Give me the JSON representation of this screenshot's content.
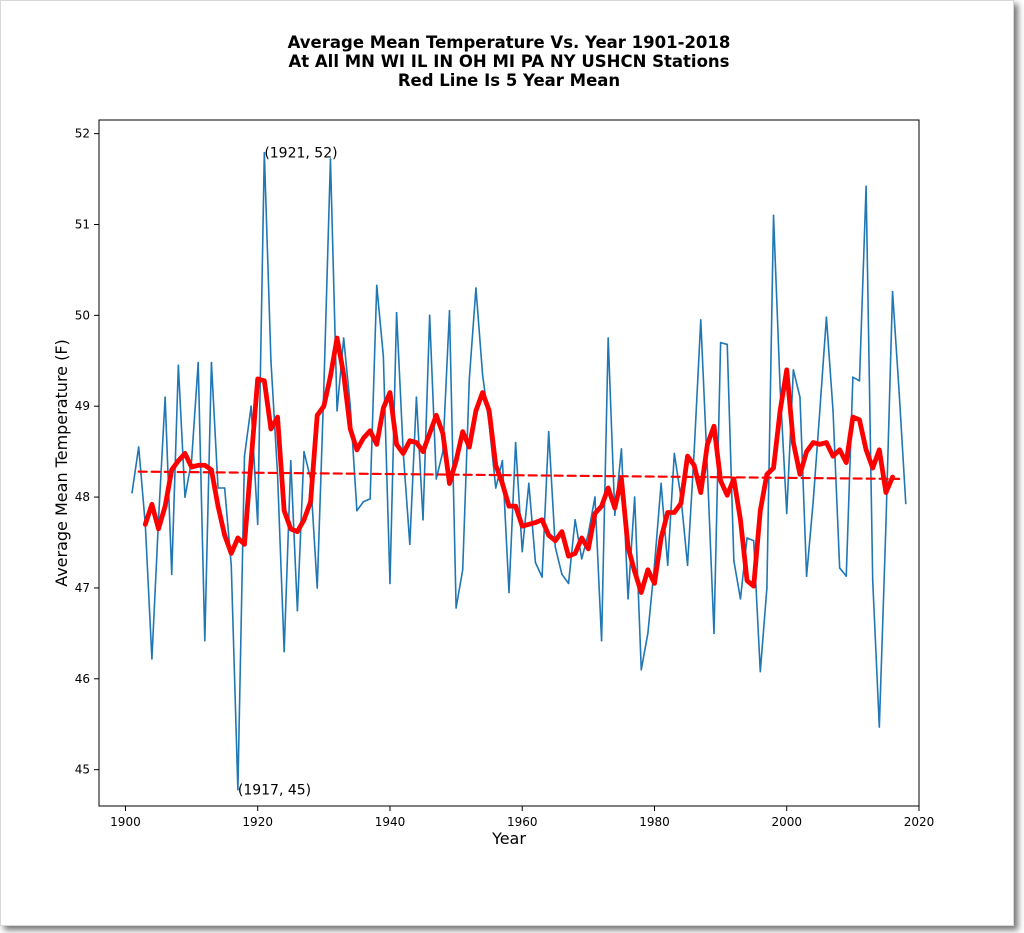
{
  "chart_data": {
    "type": "line",
    "title_lines": [
      "Average Mean Temperature Vs. Year 1901-2018",
      "At All MN WI IL IN OH MI PA NY USHCN Stations",
      "Red Line Is 5 Year Mean"
    ],
    "xlabel": "Year",
    "ylabel": "Average Mean Temperature (F)",
    "xlim": [
      1896,
      2020
    ],
    "ylim": [
      44.6,
      52.15
    ],
    "xticks": [
      1900,
      1920,
      1940,
      1960,
      1980,
      2000,
      2020
    ],
    "yticks": [
      45,
      46,
      47,
      48,
      49,
      50,
      51,
      52
    ],
    "grid": false,
    "colors": {
      "annual": "#1f77b4",
      "mean5": "#ff0000",
      "trend": "#ff0000"
    },
    "series": [
      {
        "x": [
          1901,
          1902,
          1903,
          1904,
          1905,
          1906,
          1907,
          1908,
          1909,
          1910,
          1911,
          1912,
          1913,
          1914,
          1915,
          1916,
          1917,
          1918,
          1919,
          1920,
          1921,
          1922,
          1923,
          1924,
          1925,
          1926,
          1927,
          1928,
          1929,
          1930,
          1931,
          1932,
          1933,
          1934,
          1935,
          1936,
          1937,
          1938,
          1939,
          1940,
          1941,
          1942,
          1943,
          1944,
          1945,
          1946,
          1947,
          1948,
          1949,
          1950,
          1951,
          1952,
          1953,
          1954,
          1955,
          1956,
          1957,
          1958,
          1959,
          1960,
          1961,
          1962,
          1963,
          1964,
          1965,
          1966,
          1967,
          1968,
          1969,
          1970,
          1971,
          1972,
          1973,
          1974,
          1975,
          1976,
          1977,
          1978,
          1979,
          1980,
          1981,
          1982,
          1983,
          1984,
          1985,
          1986,
          1987,
          1988,
          1989,
          1990,
          1991,
          1992,
          1993,
          1994,
          1995,
          1996,
          1997,
          1998,
          1999,
          2000,
          2001,
          2002,
          2003,
          2004,
          2005,
          2006,
          2007,
          2008,
          2009,
          2010,
          2011,
          2012,
          2013,
          2014,
          2015,
          2016,
          2017,
          2018
        ],
        "y": [
          48.05,
          48.55,
          47.7,
          46.22,
          47.75,
          49.1,
          47.15,
          49.45,
          48.0,
          48.4,
          49.48,
          46.42,
          49.48,
          48.1,
          48.1,
          47.25,
          44.78,
          48.45,
          49.0,
          47.7,
          51.79,
          49.5,
          48.25,
          46.3,
          48.4,
          46.75,
          48.5,
          48.2,
          47.0,
          49.2,
          51.72,
          48.95,
          49.75,
          49.0,
          47.85,
          47.95,
          47.98,
          50.33,
          49.55,
          47.05,
          50.03,
          48.5,
          47.48,
          49.1,
          47.75,
          50.0,
          48.2,
          48.5,
          50.05,
          46.78,
          47.2,
          49.3,
          50.3,
          49.35,
          48.8,
          48.1,
          48.4,
          46.95,
          48.6,
          47.4,
          48.15,
          47.28,
          47.12,
          48.72,
          47.45,
          47.15,
          47.05,
          47.75,
          47.32,
          47.6,
          48.0,
          46.42,
          49.75,
          47.8,
          48.53,
          46.88,
          48.0,
          46.1,
          46.5,
          47.25,
          48.15,
          47.25,
          48.48,
          48.0,
          47.25,
          48.5,
          49.95,
          48.3,
          46.5,
          49.7,
          49.68,
          47.3,
          46.88,
          47.55,
          47.52,
          46.08,
          47.0,
          51.1,
          49.2,
          47.82,
          49.4,
          49.1,
          47.13,
          47.95,
          48.95,
          49.98,
          48.95,
          47.22,
          47.13,
          49.32,
          49.28,
          51.42,
          47.08,
          45.47,
          47.7,
          50.26,
          49.15,
          47.93
        ]
      },
      {
        "name": "5 Year Mean",
        "x": [
          1903,
          1904,
          1905,
          1906,
          1907,
          1908,
          1909,
          1910,
          1911,
          1912,
          1913,
          1914,
          1915,
          1916,
          1917,
          1918,
          1919,
          1920,
          1921,
          1922,
          1923,
          1924,
          1925,
          1926,
          1927,
          1928,
          1929,
          1930,
          1931,
          1932,
          1933,
          1934,
          1935,
          1936,
          1937,
          1938,
          1939,
          1940,
          1941,
          1942,
          1943,
          1944,
          1945,
          1946,
          1947,
          1948,
          1949,
          1950,
          1951,
          1952,
          1953,
          1954,
          1955,
          1956,
          1957,
          1958,
          1959,
          1960,
          1961,
          1962,
          1963,
          1964,
          1965,
          1966,
          1967,
          1968,
          1969,
          1970,
          1971,
          1972,
          1973,
          1974,
          1975,
          1976,
          1977,
          1978,
          1979,
          1980,
          1981,
          1982,
          1983,
          1984,
          1985,
          1986,
          1987,
          1988,
          1989,
          1990,
          1991,
          1992,
          1993,
          1994,
          1995,
          1996,
          1997,
          1998,
          1999,
          2000,
          2001,
          2002,
          2003,
          2004,
          2005,
          2006,
          2007,
          2008,
          2009,
          2010,
          2011,
          2012,
          2013,
          2014,
          2015,
          2016
        ],
        "y": [
          47.7,
          47.92,
          47.65,
          47.9,
          48.3,
          48.4,
          48.48,
          48.33,
          48.35,
          48.35,
          48.3,
          47.9,
          47.58,
          47.38,
          47.55,
          47.48,
          48.4,
          49.3,
          49.28,
          48.75,
          48.88,
          47.85,
          47.65,
          47.62,
          47.75,
          47.95,
          48.9,
          49.0,
          49.33,
          49.75,
          49.35,
          48.75,
          48.52,
          48.65,
          48.73,
          48.58,
          48.98,
          49.15,
          48.58,
          48.48,
          48.62,
          48.6,
          48.5,
          48.7,
          48.9,
          48.7,
          48.15,
          48.4,
          48.72,
          48.55,
          48.95,
          49.15,
          48.95,
          48.35,
          48.15,
          47.9,
          47.9,
          47.68,
          47.7,
          47.72,
          47.75,
          47.58,
          47.52,
          47.62,
          47.35,
          47.38,
          47.55,
          47.43,
          47.82,
          47.9,
          48.1,
          47.88,
          48.2,
          47.45,
          47.18,
          46.95,
          47.2,
          47.05,
          47.55,
          47.83,
          47.83,
          47.93,
          48.45,
          48.35,
          48.05,
          48.58,
          48.78,
          48.18,
          48.02,
          48.2,
          47.75,
          47.08,
          47.02,
          47.85,
          48.25,
          48.32,
          48.95,
          49.4,
          48.6,
          48.25,
          48.5,
          48.6,
          48.58,
          48.6,
          48.45,
          48.52,
          48.38,
          48.88,
          48.85,
          48.52,
          48.32,
          48.52,
          48.05,
          48.22
        ]
      },
      {
        "name": "trend",
        "x": [
          1902,
          2017
        ],
        "y": [
          48.28,
          48.2
        ]
      }
    ],
    "annotations": [
      {
        "text": "(1921, 52)",
        "x": 1921,
        "y": 51.79
      },
      {
        "text": "(1917, 45)",
        "x": 1917,
        "y": 44.78
      }
    ]
  }
}
